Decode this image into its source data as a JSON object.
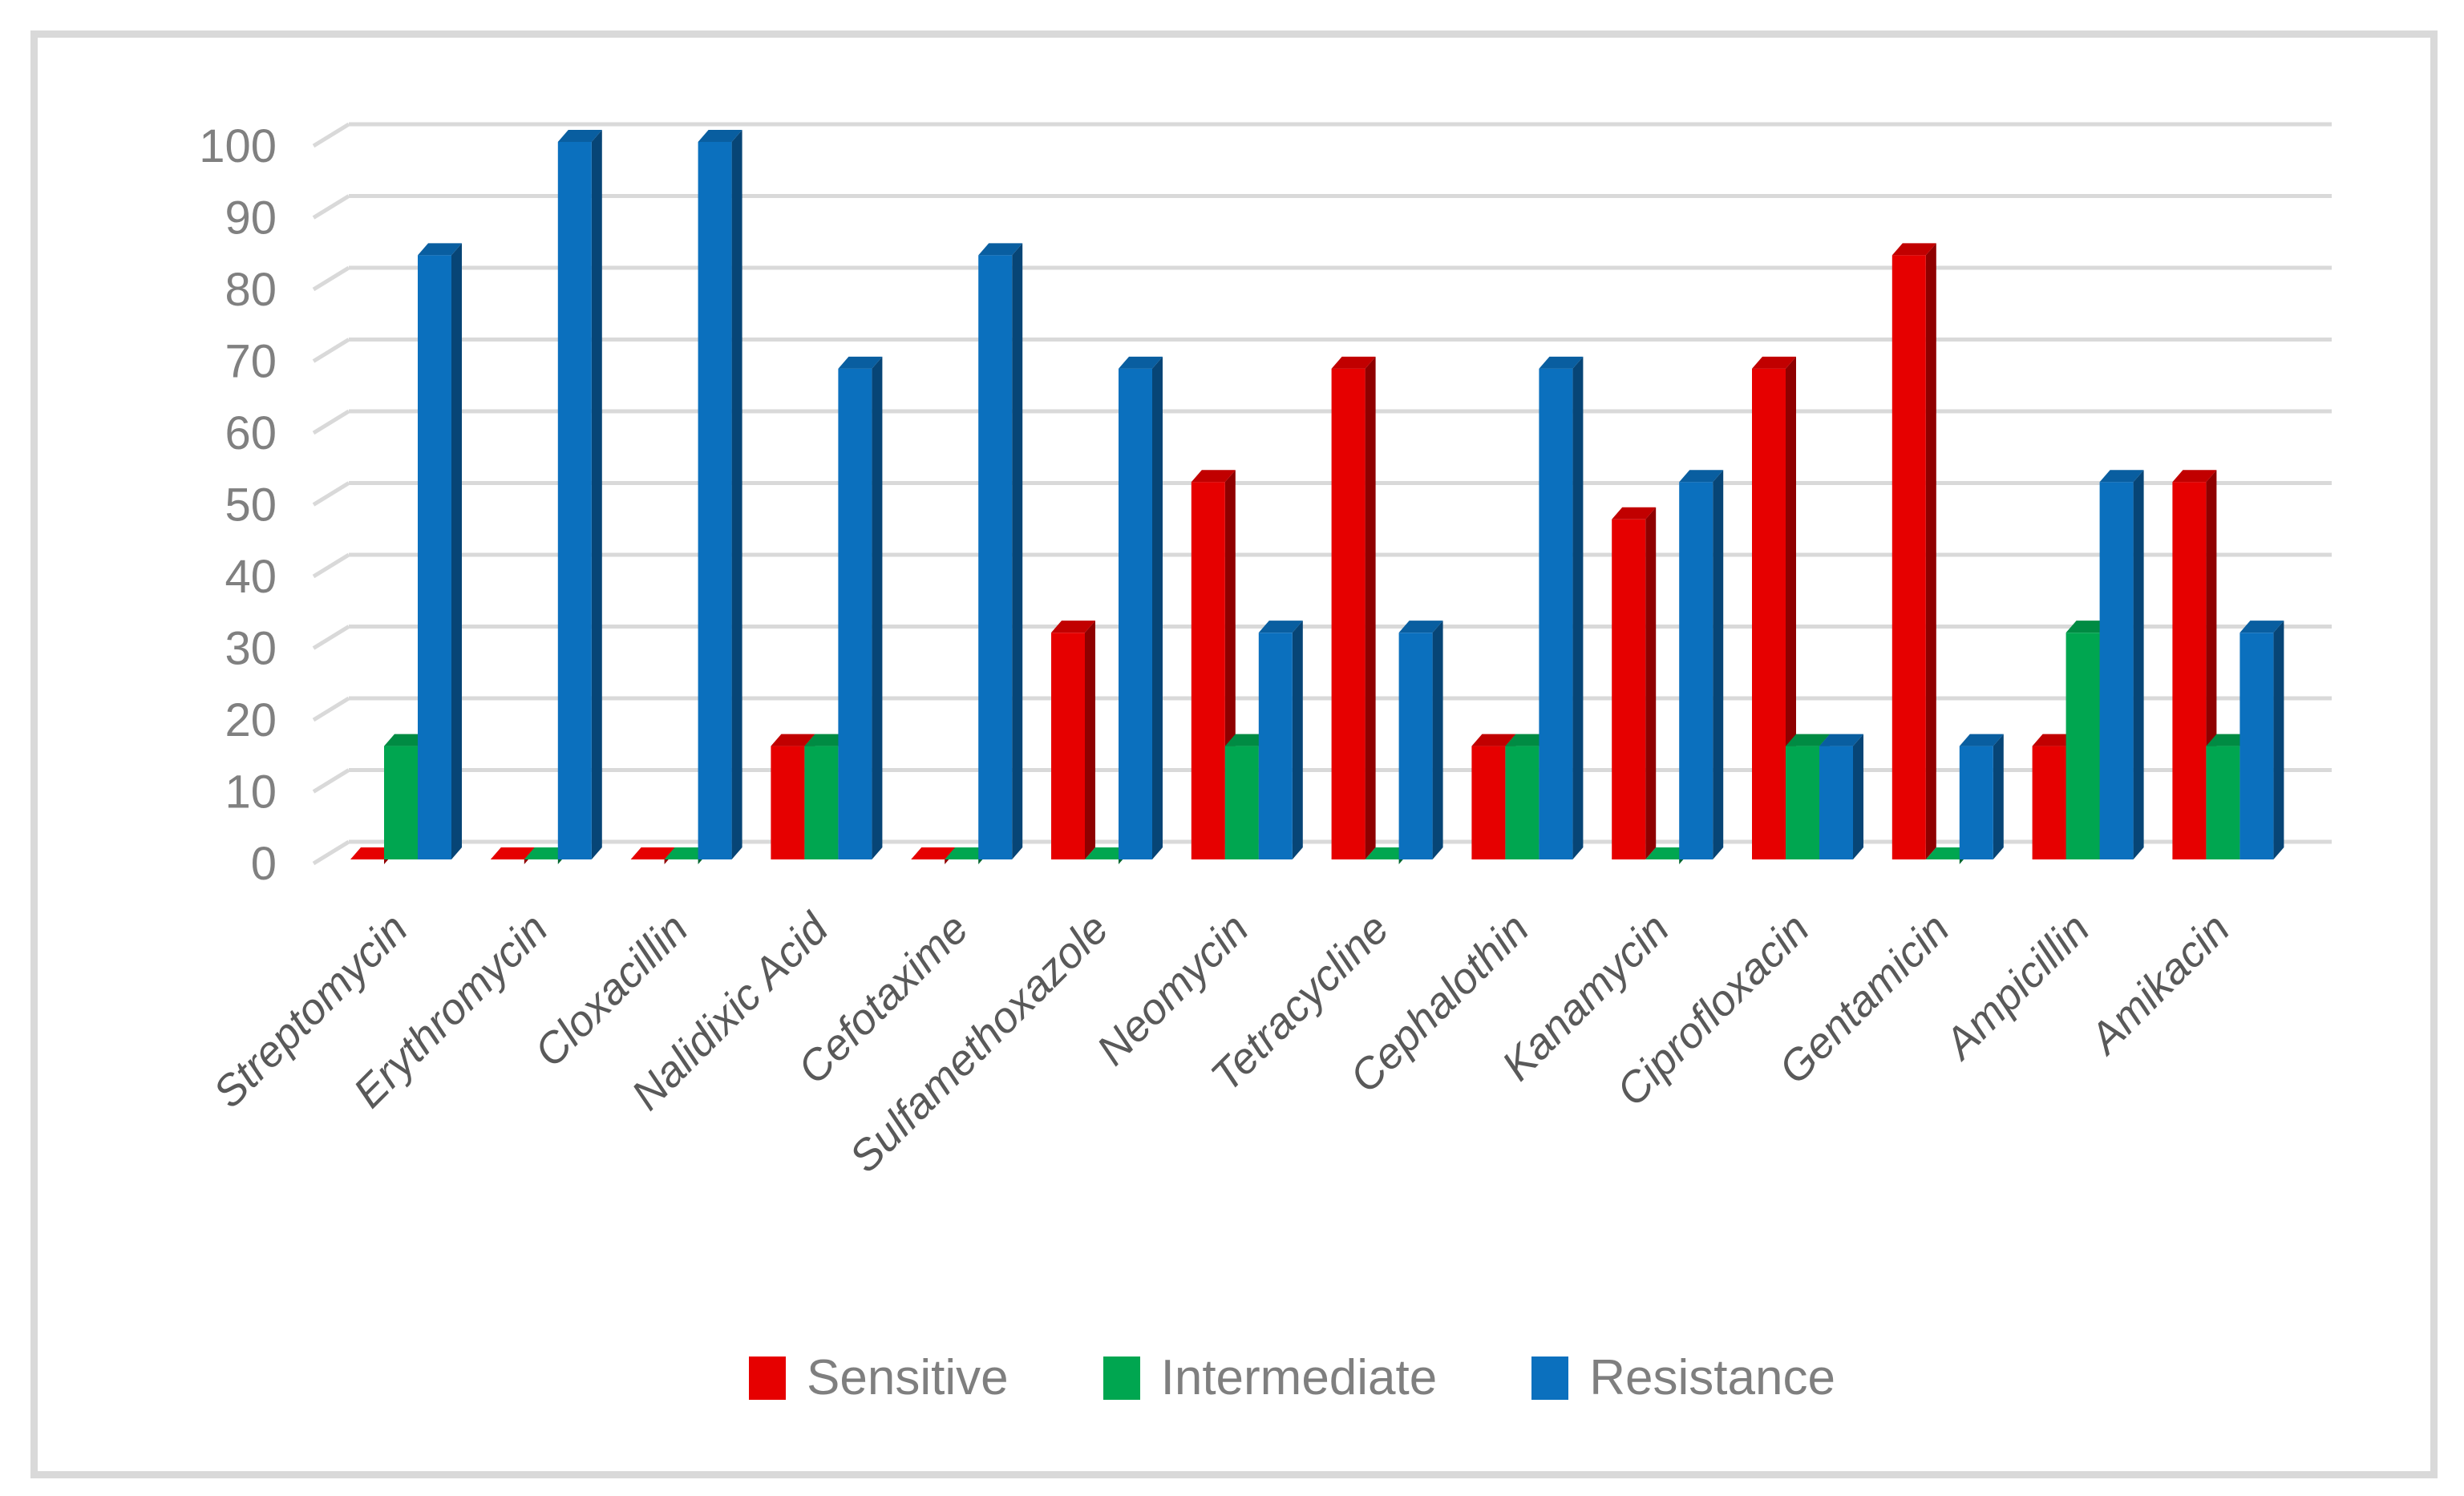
{
  "figure": {
    "background_color": "#FFFFFF",
    "frame_color": "#D9D9D9",
    "gridline_color": "#D9D9D9",
    "y_tick_label_color": "#808080",
    "x_label_color": "#595959",
    "legend_text_color": "#7F7F7F"
  },
  "chart_data": {
    "type": "bar",
    "style": "3d-clustered-column",
    "title": "",
    "xlabel": "",
    "ylabel": "",
    "ylim": [
      0,
      100
    ],
    "yticks": [
      0,
      10,
      20,
      30,
      40,
      50,
      60,
      70,
      80,
      90,
      100
    ],
    "grid": true,
    "legend_position": "bottom",
    "categories": [
      "Streptomycin",
      "Erythromycin",
      "Cloxacillin",
      "Nalidixic Acid",
      "Cefotaxime",
      "Sulfamethoxazole",
      "Neomycin",
      "Tetracycline",
      "Cephalothin",
      "Kanamycin",
      "Ciprofloxacin",
      "Gentamicin",
      "Ampicillin",
      "Amikacin"
    ],
    "series": [
      {
        "name": "Sensitive",
        "color": "#E60000",
        "values": [
          0,
          0,
          0,
          15.8,
          0,
          31.6,
          52.6,
          68.4,
          15.8,
          47.4,
          68.4,
          84.2,
          15.8,
          52.6
        ]
      },
      {
        "name": "Intermediate",
        "color": "#00A650",
        "values": [
          15.8,
          0,
          0,
          15.8,
          0,
          0,
          15.8,
          0,
          15.8,
          0,
          15.8,
          0,
          31.6,
          15.8
        ]
      },
      {
        "name": "Resistance",
        "color": "#0B70BE",
        "values": [
          84.2,
          100,
          100,
          68.4,
          84.2,
          68.4,
          31.6,
          31.6,
          68.4,
          52.6,
          15.8,
          15.8,
          52.6,
          31.6
        ]
      }
    ]
  }
}
